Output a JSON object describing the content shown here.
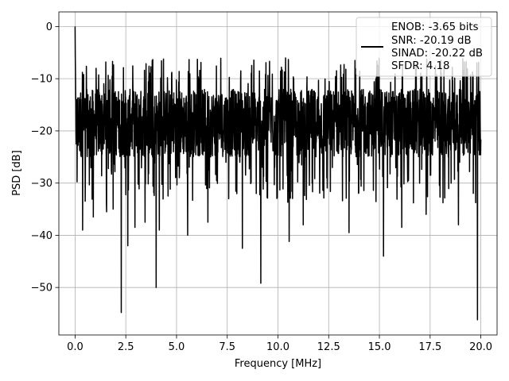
{
  "chart_data": {
    "type": "line",
    "xlabel": "Frequency [MHz]",
    "ylabel": "PSD [dB]",
    "xlim": [
      -0.8,
      20.8
    ],
    "ylim": [
      -59.1,
      2.8
    ],
    "x_ticks": [
      0.0,
      2.5,
      5.0,
      7.5,
      10.0,
      12.5,
      15.0,
      17.5,
      20.0
    ],
    "x_tick_labels": [
      "0.0",
      "2.5",
      "5.0",
      "7.5",
      "10.0",
      "12.5",
      "15.0",
      "17.5",
      "20.0"
    ],
    "y_ticks": [
      0,
      -10,
      -20,
      -30,
      -40,
      -50
    ],
    "y_tick_labels": [
      "0",
      "−10",
      "−20",
      "−30",
      "−40",
      "−50"
    ],
    "grid": true,
    "legend_position": "top-right",
    "series": [
      {
        "name": "ENOB: -3.65 bits\nSNR: -20.19 dB\nSINAD: -20.22 dB\nSFDR: 4.18",
        "color": "#000000",
        "x_start": 0.0,
        "x_end": 20.0,
        "points": 2048,
        "peak": [
          0.0,
          0.0
        ],
        "noise_floor_typical_range": [
          -25,
          -12
        ],
        "noise_floor_upper_excursions": -6,
        "dips": [
          [
            0.37,
            -39.0
          ],
          [
            0.9,
            -36.5
          ],
          [
            1.55,
            -35.5
          ],
          [
            1.88,
            -35.0
          ],
          [
            2.28,
            -54.8
          ],
          [
            2.6,
            -42.0
          ],
          [
            2.95,
            -38.5
          ],
          [
            3.45,
            -37.5
          ],
          [
            4.0,
            -50.0
          ],
          [
            4.15,
            -39.0
          ],
          [
            5.55,
            -40.0
          ],
          [
            6.55,
            -37.5
          ],
          [
            8.25,
            -42.5
          ],
          [
            9.15,
            -49.2
          ],
          [
            10.55,
            -41.2
          ],
          [
            11.25,
            -38.0
          ],
          [
            13.5,
            -39.5
          ],
          [
            15.2,
            -44.0
          ],
          [
            16.1,
            -38.5
          ],
          [
            17.3,
            -36.0
          ],
          [
            18.9,
            -38.0
          ],
          [
            19.83,
            -56.2
          ]
        ]
      }
    ],
    "legend_entries": [
      "ENOB: -3.65 bits",
      "SNR: -20.19 dB",
      "SINAD: -20.22 dB",
      "SFDR: 4.18"
    ]
  }
}
